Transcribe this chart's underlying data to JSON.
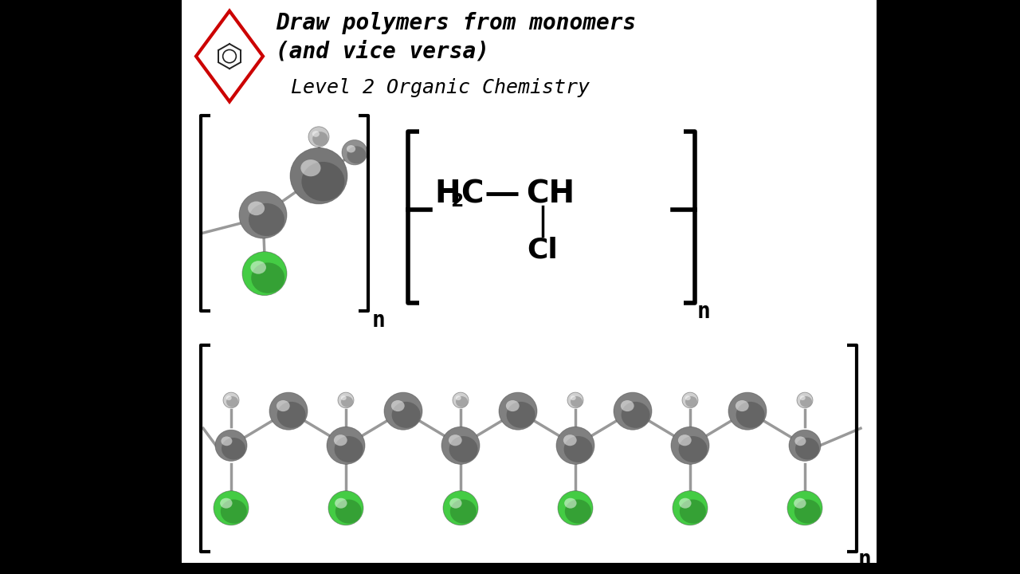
{
  "bg_color": "#000000",
  "panel_color": "#ffffff",
  "title_line1": "Draw polymers from monomers",
  "title_line2": "(and vice versa)",
  "title_line3": "Level 2 Organic Chemistry",
  "title_color": "#000000",
  "title_fontsize": 20,
  "subtitle_fontsize": 18,
  "diamond_color_fill": "#ffffff",
  "diamond_color_edge": "#cc0000",
  "bracket_color": "#000000",
  "text_color": "#000000",
  "green_color": "#44cc44",
  "gray_dark": "#707070",
  "gray_mid": "#888888",
  "gray_light": "#aaaaaa",
  "white_atom": "#d8d8d8",
  "formula_fontsize": 26
}
